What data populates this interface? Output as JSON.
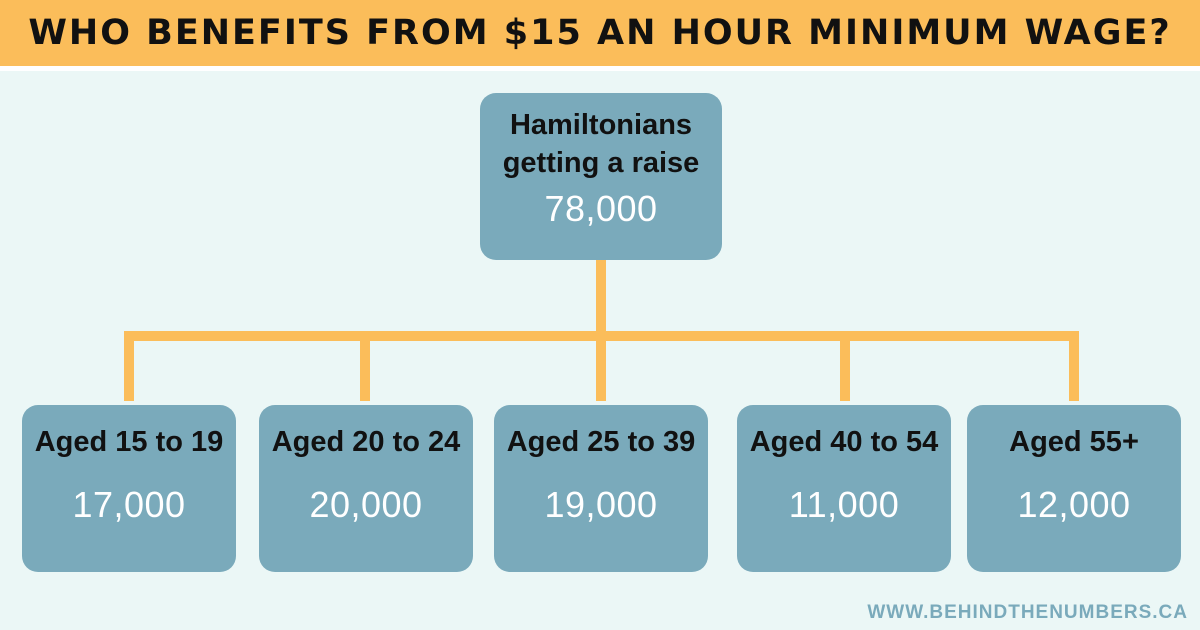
{
  "title": "WHO BENEFITS FROM $15 AN HOUR MINIMUM WAGE?",
  "root": {
    "label_line1": "Hamiltonians",
    "label_line2": "getting a raise",
    "value": "78,000"
  },
  "groups": [
    {
      "label": "Aged 15 to 19",
      "value": "17,000"
    },
    {
      "label": "Aged 20 to 24",
      "value": "20,000"
    },
    {
      "label": "Aged 25 to 39",
      "value": "19,000"
    },
    {
      "label": "Aged 40 to 54",
      "value": "11,000"
    },
    {
      "label": "Aged 55+",
      "value": "12,000"
    }
  ],
  "footer": "WWW.BEHINDTHENUMBERS.CA",
  "colors": {
    "banner": "#fbbd5a",
    "box": "#7aaabb",
    "connector": "#fbbd5a",
    "background": "#ebf7f6"
  }
}
